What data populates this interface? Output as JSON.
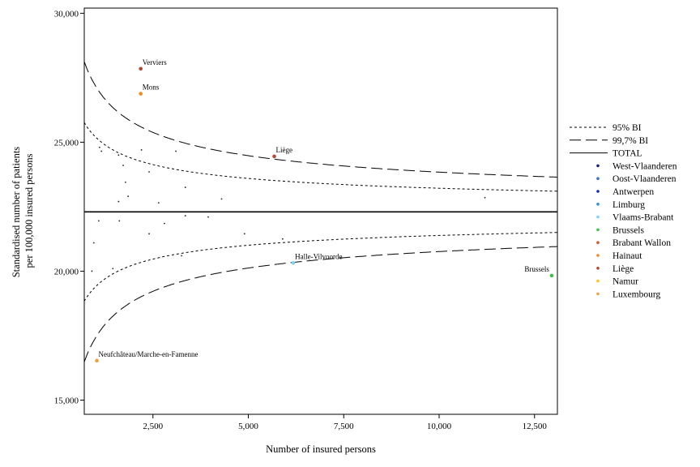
{
  "chart_data": {
    "type": "scatter",
    "xlabel": "Number of insured persons",
    "ylabel": [
      "Standardised number of patients",
      "per 100,000 insured persons"
    ],
    "xlim": [
      700,
      13100
    ],
    "ylim": [
      14450,
      30200
    ],
    "x_ticks": [
      {
        "value": 2500,
        "label": "2,500"
      },
      {
        "value": 5000,
        "label": "5,000"
      },
      {
        "value": 7500,
        "label": "7,500"
      },
      {
        "value": 10000,
        "label": "10,000"
      },
      {
        "value": 12500,
        "label": "12,500"
      }
    ],
    "y_ticks": [
      {
        "value": 15000,
        "label": "15,000"
      },
      {
        "value": 20000,
        "label": "20,000"
      },
      {
        "value": 25000,
        "label": "25,000"
      },
      {
        "value": 30000,
        "label": "30,000"
      }
    ],
    "grid": false,
    "legend_position": "right",
    "total_rate": 22300,
    "ci95_factor": 2.2,
    "ci997_factor": 3.7,
    "legend": [
      {
        "key": "ci95",
        "label": "95% BI",
        "style": "dotted"
      },
      {
        "key": "ci997",
        "label": "99,7% BI",
        "style": "dashed"
      },
      {
        "key": "total",
        "label": "TOTAL",
        "style": "solid"
      },
      {
        "key": "west-vlaanderen",
        "label": "West-Vlaanderen",
        "color": "#1a237e"
      },
      {
        "key": "oost-vlaanderen",
        "label": "Oost-Vlaanderen",
        "color": "#3d6fd1"
      },
      {
        "key": "antwerpen",
        "label": "Antwerpen",
        "color": "#1226c4"
      },
      {
        "key": "limburg",
        "label": "Limburg",
        "color": "#2f8fd8"
      },
      {
        "key": "vlaams-brabant",
        "label": "Vlaams-Brabant",
        "color": "#7fd3f0"
      },
      {
        "key": "brussels",
        "label": "Brussels",
        "color": "#3cc04a"
      },
      {
        "key": "brabant-wallon",
        "label": "Brabant Wallon",
        "color": "#d2562a"
      },
      {
        "key": "hainaut",
        "label": "Hainaut",
        "color": "#f08a1e"
      },
      {
        "key": "liege",
        "label": "Liège",
        "color": "#b5462f"
      },
      {
        "key": "namur",
        "label": "Namur",
        "color": "#ffc21f"
      },
      {
        "key": "luxembourg",
        "label": "Luxembourg",
        "color": "#f0a040"
      }
    ],
    "highlighted_points": [
      {
        "label": "Verviers",
        "x": 2180,
        "y": 27850,
        "color": "#b5462f"
      },
      {
        "label": "Mons",
        "x": 2180,
        "y": 26880,
        "color": "#f08a1e"
      },
      {
        "label": "Liège",
        "x": 5680,
        "y": 24450,
        "color": "#b5462f"
      },
      {
        "label": "Halle-Vilvoorde",
        "x": 6180,
        "y": 20320,
        "color": "#7fd3f0"
      },
      {
        "label": "Brussels",
        "x": 12950,
        "y": 19830,
        "color": "#3cc04a"
      },
      {
        "label": "Neufchâteau/Marche-en-Famenne",
        "x": 1030,
        "y": 16530,
        "color": "#f0a040"
      }
    ],
    "other_points": [
      {
        "x": 1100,
        "y": 24800
      },
      {
        "x": 1150,
        "y": 24650
      },
      {
        "x": 1600,
        "y": 24500
      },
      {
        "x": 1720,
        "y": 24100
      },
      {
        "x": 2200,
        "y": 24700
      },
      {
        "x": 3100,
        "y": 24650
      },
      {
        "x": 1780,
        "y": 23450
      },
      {
        "x": 2400,
        "y": 23850
      },
      {
        "x": 3350,
        "y": 23250
      },
      {
        "x": 1850,
        "y": 22900
      },
      {
        "x": 1600,
        "y": 22700
      },
      {
        "x": 2650,
        "y": 22650
      },
      {
        "x": 4300,
        "y": 22800
      },
      {
        "x": 11200,
        "y": 22850
      },
      {
        "x": 1080,
        "y": 21950
      },
      {
        "x": 1620,
        "y": 21950
      },
      {
        "x": 2800,
        "y": 21850
      },
      {
        "x": 3350,
        "y": 22150
      },
      {
        "x": 3950,
        "y": 22100
      },
      {
        "x": 950,
        "y": 21100
      },
      {
        "x": 2400,
        "y": 21450
      },
      {
        "x": 4900,
        "y": 21450
      },
      {
        "x": 5900,
        "y": 21250
      },
      {
        "x": 3250,
        "y": 20600
      },
      {
        "x": 1450,
        "y": 20100
      },
      {
        "x": 900,
        "y": 20000
      }
    ]
  }
}
